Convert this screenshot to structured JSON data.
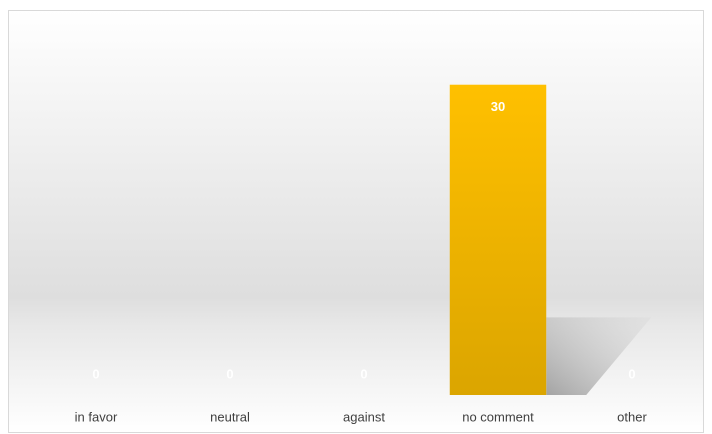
{
  "chart_data": {
    "type": "bar",
    "categories": [
      "in favor",
      "neutral",
      "against",
      "no comment",
      "other"
    ],
    "values": [
      0,
      0,
      0,
      30,
      0
    ],
    "color": "#ffc000",
    "ylim": [
      0,
      35
    ]
  }
}
